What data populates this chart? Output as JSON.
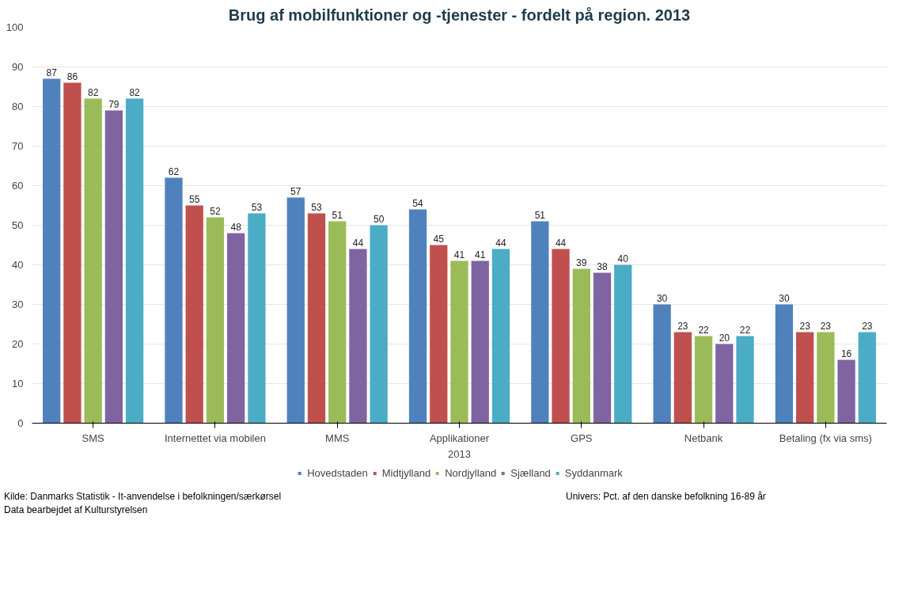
{
  "chart_data": {
    "type": "bar",
    "title": "Brug af mobilfunktioner og -tjenester - fordelt på region. 2013",
    "xlabel": "2013",
    "categories": [
      "SMS",
      "Internettet via mobilen",
      "MMS",
      "Applikationer",
      "GPS",
      "Netbank",
      "Betaling (fx via sms)"
    ],
    "series": [
      {
        "name": "Hovedstaden",
        "color": "#4f81bd",
        "values": [
          87,
          62,
          57,
          54,
          51,
          30,
          30
        ]
      },
      {
        "name": "Midtjylland",
        "color": "#c0504d",
        "values": [
          86,
          55,
          53,
          45,
          44,
          23,
          23
        ]
      },
      {
        "name": "Nordjylland",
        "color": "#9bbb59",
        "values": [
          82,
          52,
          51,
          41,
          39,
          22,
          23
        ]
      },
      {
        "name": "Sjælland",
        "color": "#8064a2",
        "values": [
          79,
          48,
          44,
          41,
          38,
          20,
          16
        ]
      },
      {
        "name": "Syddanmark",
        "color": "#4bacc6",
        "values": [
          82,
          53,
          50,
          44,
          40,
          22,
          23
        ]
      }
    ],
    "ylim": [
      0,
      100
    ],
    "yticks": [
      0,
      10,
      20,
      30,
      40,
      50,
      60,
      70,
      80,
      90,
      100
    ],
    "grid": "y",
    "legend": "bottom",
    "data_labels": true,
    "annotations": [
      "Kilde: Danmarks Statistik - It-anvendelse i befolkningen/særkørsel",
      "Data bearbejdet af Kulturstyrelsen",
      "Univers: Pct. af den danske befolkning 16-89 år"
    ]
  }
}
